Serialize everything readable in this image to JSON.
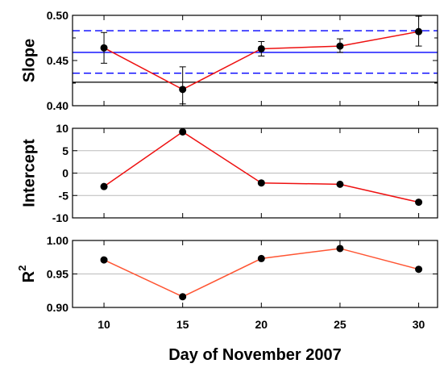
{
  "chart_data": [
    {
      "type": "line",
      "ylabel": "Slope",
      "x": [
        10,
        15,
        20,
        25,
        30
      ],
      "values": [
        0.464,
        0.418,
        0.463,
        0.466,
        0.482
      ],
      "error_low": [
        0.447,
        0.402,
        0.455,
        0.459,
        0.466
      ],
      "error_high": [
        0.481,
        0.443,
        0.471,
        0.474,
        0.499
      ],
      "ylim": [
        0.4,
        0.5
      ],
      "yticks": [
        0.4,
        0.45,
        0.5
      ],
      "ytick_labels": [
        "0.40",
        "0.45",
        "0.50"
      ],
      "minor_yticks": [
        0.425,
        0.475
      ],
      "reference_lines": [
        {
          "value": 0.459,
          "style": "solid",
          "color": "#0000ff"
        },
        {
          "value": 0.483,
          "style": "dashed",
          "color": "#0000ff"
        },
        {
          "value": 0.436,
          "style": "dashed",
          "color": "#0000ff"
        },
        {
          "value": 0.426,
          "style": "solid",
          "color": "#000000"
        }
      ],
      "grid": false
    },
    {
      "type": "line",
      "ylabel": "Intercept",
      "x": [
        10,
        15,
        20,
        25,
        30
      ],
      "values": [
        -3.0,
        9.2,
        -2.2,
        -2.5,
        -6.5
      ],
      "ylim": [
        -10,
        10
      ],
      "yticks": [
        -10,
        -5,
        0,
        5,
        10
      ],
      "ytick_labels": [
        "-10",
        "-5",
        "0",
        "5",
        "10"
      ],
      "grid": true
    },
    {
      "type": "line",
      "ylabel_main": "R",
      "ylabel_sup": "2",
      "x": [
        10,
        15,
        20,
        25,
        30
      ],
      "values": [
        0.971,
        0.916,
        0.973,
        0.988,
        0.957
      ],
      "ylim": [
        0.9,
        1.0
      ],
      "yticks": [
        0.9,
        0.95,
        1.0
      ],
      "ytick_labels": [
        "0.90",
        "0.95",
        "1.00"
      ],
      "grid": true
    }
  ],
  "xaxis": {
    "xlabel": "Day of November 2007",
    "xlim": [
      8,
      31.2
    ],
    "xticks": [
      10,
      15,
      20,
      25,
      30
    ],
    "xtick_labels": [
      "10",
      "15",
      "20",
      "25",
      "30"
    ]
  },
  "colors": {
    "line_red": "#ee1111",
    "line_r2": "#ff5533",
    "marker": "#000000",
    "ref_blue": "#0000ff",
    "grid": "#bbbbbb"
  }
}
